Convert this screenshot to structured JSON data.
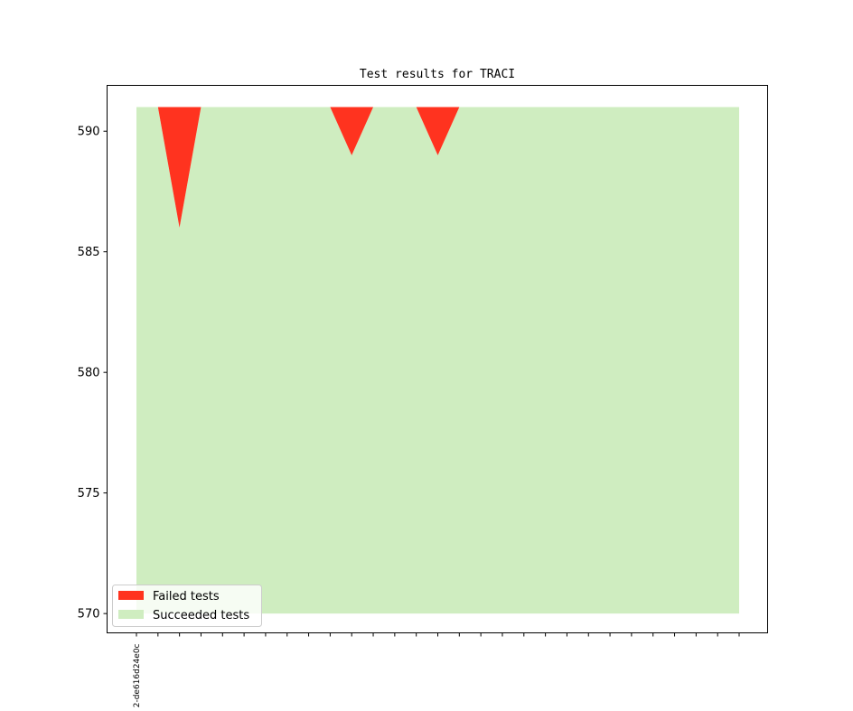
{
  "chart_data": {
    "type": "area",
    "title": "Test results for TRACI",
    "xlabel": "",
    "ylabel": "",
    "ylim": [
      569.2,
      591.9
    ],
    "yticks": [
      570,
      575,
      580,
      585,
      590
    ],
    "x": [
      "2-de616d24e0c",
      "",
      "",
      "",
      "",
      "",
      "",
      "",
      "",
      "",
      "",
      "",
      "",
      "",
      "",
      "",
      "",
      "",
      "",
      "",
      "",
      "",
      "",
      "",
      "",
      "",
      "",
      "",
      ""
    ],
    "series": [
      {
        "name": "Succeeded tests",
        "color": "#cfedc0",
        "values": [
          591,
          591,
          591,
          591,
          591,
          591,
          591,
          591,
          591,
          591,
          591,
          591,
          591,
          591,
          591,
          591,
          591,
          591,
          591,
          591,
          591,
          591,
          591,
          591,
          591,
          591,
          591,
          591,
          591
        ]
      },
      {
        "name": "Failed tests",
        "color": "#ff331f",
        "values": [
          0,
          0,
          5,
          0,
          0,
          0,
          0,
          0,
          0,
          0,
          2,
          0,
          0,
          0,
          2,
          0,
          0,
          0,
          0,
          0,
          0,
          0,
          0,
          0,
          0,
          0,
          0,
          0,
          0
        ]
      }
    ],
    "baseline": 570,
    "total": 591,
    "legend": "lower-left",
    "grid": false
  }
}
